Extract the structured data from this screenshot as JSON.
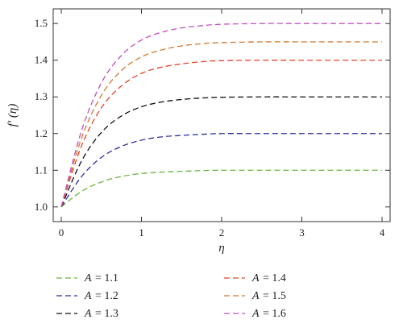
{
  "chart_data": {
    "type": "line",
    "title": "",
    "xlabel": "η",
    "ylabel": "f′ (η)",
    "xlim": [
      0,
      4
    ],
    "ylim": [
      0.96,
      1.54
    ],
    "x_ticks": [
      "0",
      "1",
      "2",
      "3",
      "4"
    ],
    "y_ticks": [
      "1.0",
      "1.1",
      "1.2",
      "1.3",
      "1.4",
      "1.5"
    ],
    "grid": false,
    "legend_position": "bottom",
    "series": [
      {
        "name": "A = 1.1",
        "legend_var": "A",
        "legend_value": "= 1.1",
        "color": "#6cb33f",
        "x": [
          0,
          0.25,
          0.5,
          0.75,
          1,
          1.25,
          1.5,
          1.75,
          2,
          2.5,
          3,
          3.5,
          4
        ],
        "y": [
          1.0,
          1.042,
          1.068,
          1.083,
          1.091,
          1.095,
          1.097,
          1.099,
          1.1,
          1.1,
          1.1,
          1.1,
          1.1
        ]
      },
      {
        "name": "A = 1.2",
        "legend_var": "A",
        "legend_value": "= 1.2",
        "color": "#2e2e9e",
        "x": [
          0,
          0.25,
          0.5,
          0.75,
          1,
          1.25,
          1.5,
          1.75,
          2,
          2.5,
          3,
          3.5,
          4
        ],
        "y": [
          1.0,
          1.082,
          1.135,
          1.165,
          1.182,
          1.191,
          1.195,
          1.198,
          1.2,
          1.2,
          1.2,
          1.2,
          1.2
        ]
      },
      {
        "name": "A = 1.3",
        "legend_var": "A",
        "legend_value": "= 1.3",
        "color": "#111111",
        "x": [
          0,
          0.25,
          0.5,
          0.75,
          1,
          1.25,
          1.5,
          1.75,
          2,
          2.5,
          3,
          3.5,
          4
        ],
        "y": [
          1.0,
          1.124,
          1.203,
          1.248,
          1.273,
          1.286,
          1.293,
          1.297,
          1.299,
          1.3,
          1.3,
          1.3,
          1.3
        ]
      },
      {
        "name": "A = 1.4",
        "legend_var": "A",
        "legend_value": "= 1.4",
        "color": "#e0452a",
        "x": [
          0,
          0.25,
          0.5,
          0.75,
          1,
          1.25,
          1.5,
          1.75,
          2,
          2.5,
          3,
          3.5,
          4
        ],
        "y": [
          1.0,
          1.165,
          1.27,
          1.33,
          1.364,
          1.381,
          1.39,
          1.396,
          1.399,
          1.4,
          1.4,
          1.4,
          1.4
        ]
      },
      {
        "name": "A = 1.5",
        "legend_var": "A",
        "legend_value": "= 1.5",
        "color": "#cf7a2e",
        "x": [
          0,
          0.25,
          0.5,
          0.75,
          1,
          1.25,
          1.5,
          1.75,
          2,
          2.5,
          3,
          3.5,
          4
        ],
        "y": [
          1.0,
          1.186,
          1.304,
          1.372,
          1.409,
          1.428,
          1.439,
          1.445,
          1.448,
          1.45,
          1.45,
          1.45,
          1.45
        ]
      },
      {
        "name": "A = 1.6",
        "legend_var": "A",
        "legend_value": "= 1.6",
        "color": "#c050c0",
        "x": [
          0,
          0.25,
          0.5,
          0.75,
          1,
          1.25,
          1.5,
          1.75,
          2,
          2.5,
          3,
          3.5,
          4
        ],
        "y": [
          1.0,
          1.206,
          1.338,
          1.413,
          1.455,
          1.476,
          1.488,
          1.494,
          1.498,
          1.5,
          1.5,
          1.5,
          1.5
        ]
      }
    ]
  }
}
